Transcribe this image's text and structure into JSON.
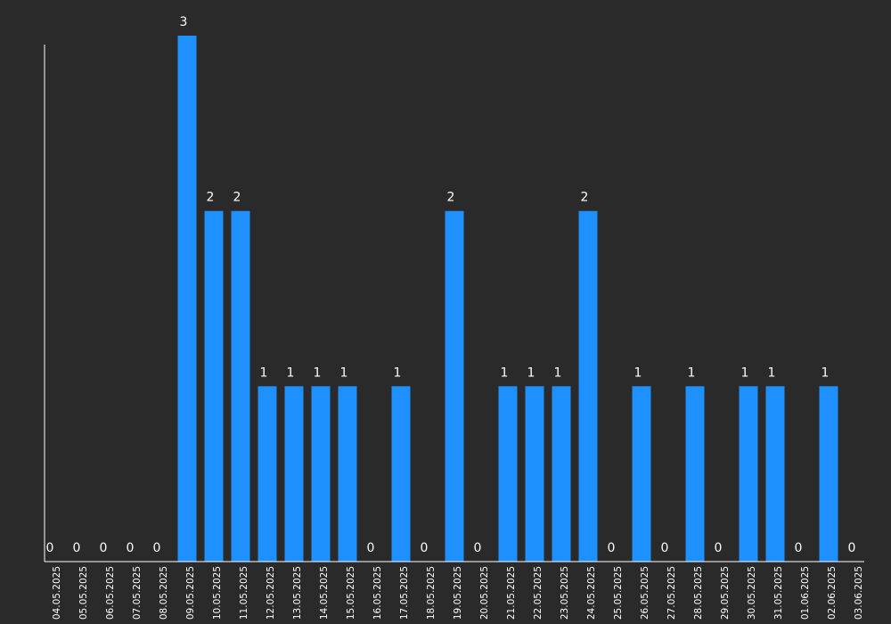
{
  "chart_data": {
    "type": "bar",
    "categories": [
      "04.05.2025",
      "05.05.2025",
      "06.05.2025",
      "07.05.2025",
      "08.05.2025",
      "09.05.2025",
      "10.05.2025",
      "11.05.2025",
      "12.05.2025",
      "13.05.2025",
      "14.05.2025",
      "15.05.2025",
      "16.05.2025",
      "17.05.2025",
      "18.05.2025",
      "19.05.2025",
      "20.05.2025",
      "21.05.2025",
      "22.05.2025",
      "23.05.2025",
      "24.05.2025",
      "25.05.2025",
      "26.05.2025",
      "27.05.2025",
      "28.05.2025",
      "29.05.2025",
      "30.05.2025",
      "31.05.2025",
      "01.06.2025",
      "02.06.2025",
      "03.06.2025"
    ],
    "values": [
      0,
      0,
      0,
      0,
      0,
      3,
      2,
      2,
      1,
      1,
      1,
      1,
      0,
      1,
      0,
      2,
      0,
      1,
      1,
      1,
      2,
      0,
      1,
      0,
      1,
      0,
      1,
      1,
      0,
      1,
      0
    ],
    "title": "",
    "xlabel": "",
    "ylabel": "",
    "ylim": [
      0,
      3
    ],
    "grid": false,
    "data_labels": true,
    "colors": {
      "background": "#2a2a2a",
      "bar": "#1e90ff",
      "axis": "#ffffff",
      "text": "#ffffff"
    }
  }
}
